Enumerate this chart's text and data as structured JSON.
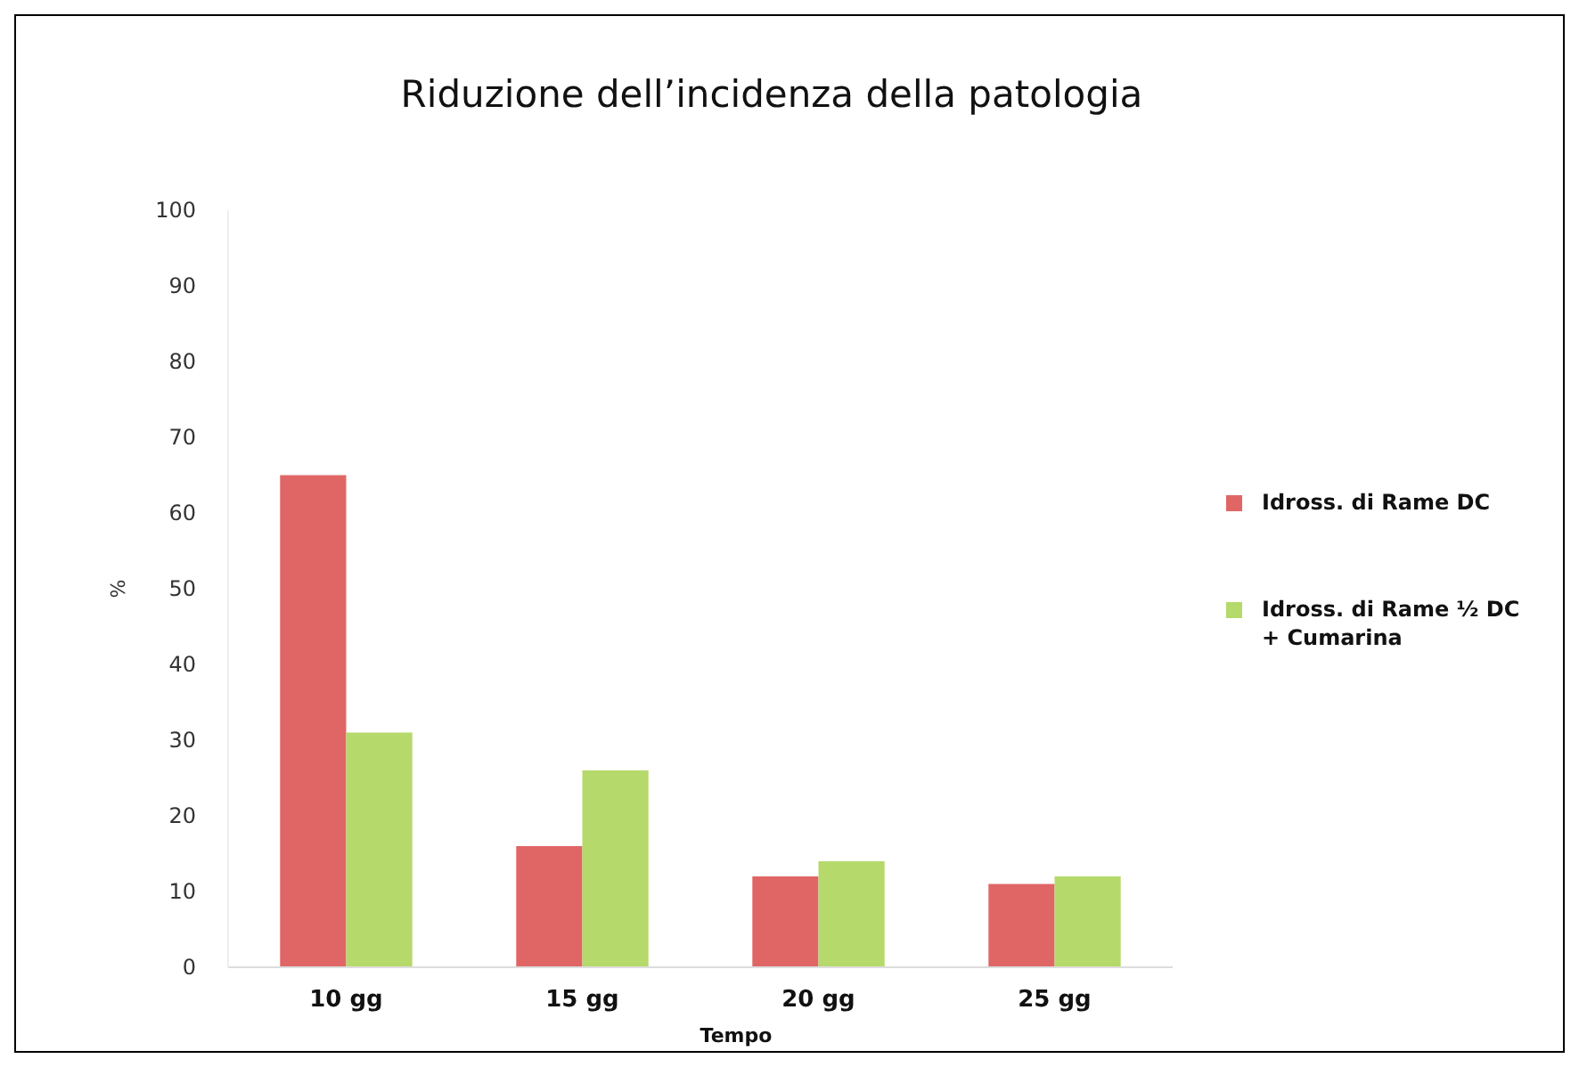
{
  "chart_data": {
    "type": "bar",
    "title": "Riduzione dell’incidenza della patologia",
    "xlabel": "Tempo",
    "ylabel": "%",
    "categories": [
      "10 gg",
      "15 gg",
      "20 gg",
      "25 gg"
    ],
    "series": [
      {
        "name": "Idross. di Rame DC",
        "color": "#e06666",
        "values": [
          65,
          16,
          12,
          11
        ]
      },
      {
        "name": "Idross. di Rame ½ DC + Cumarina",
        "color": "#b5d96a",
        "values": [
          31,
          26,
          14,
          12
        ]
      }
    ],
    "ylim": [
      0,
      100
    ],
    "yticks": [
      0,
      10,
      20,
      30,
      40,
      50,
      60,
      70,
      80,
      90,
      100
    ],
    "grid": false,
    "legend": "right"
  }
}
